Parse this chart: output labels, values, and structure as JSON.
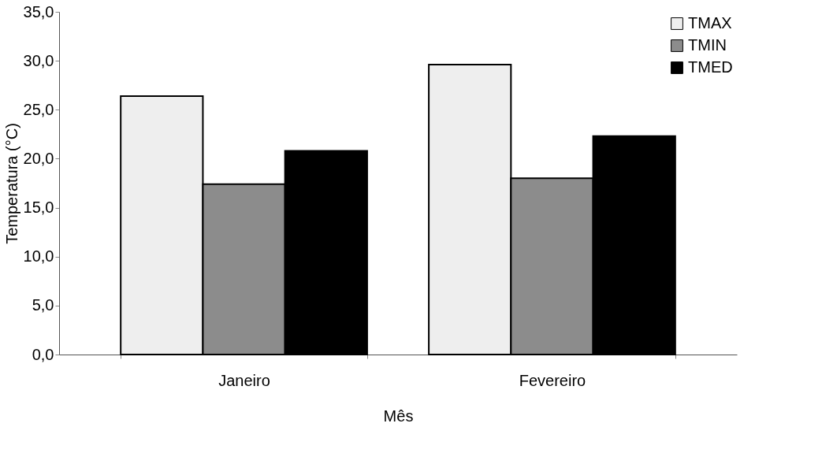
{
  "chart_data": {
    "type": "bar",
    "xlabel": "Mês",
    "ylabel": "Temperatura (°C)",
    "categories": [
      "Janeiro",
      "Fevereiro"
    ],
    "series": [
      {
        "name": "TMAX",
        "color": "#eeeeee",
        "values": [
          26.4,
          29.6
        ]
      },
      {
        "name": "TMIN",
        "color": "#8c8c8c",
        "values": [
          17.4,
          18.0
        ]
      },
      {
        "name": "TMED",
        "color": "#000000",
        "values": [
          20.8,
          22.3
        ]
      }
    ],
    "ylim": [
      0,
      35
    ],
    "yticks": [
      {
        "value": 0,
        "label": "0,0"
      },
      {
        "value": 5,
        "label": "5,0"
      },
      {
        "value": 10,
        "label": "10,0"
      },
      {
        "value": 15,
        "label": "15,0"
      },
      {
        "value": 20,
        "label": "20,0"
      },
      {
        "value": 25,
        "label": "25,0"
      },
      {
        "value": 30,
        "label": "30,0"
      },
      {
        "value": 35,
        "label": "35,0"
      }
    ],
    "grid": false,
    "legend": "top right"
  }
}
